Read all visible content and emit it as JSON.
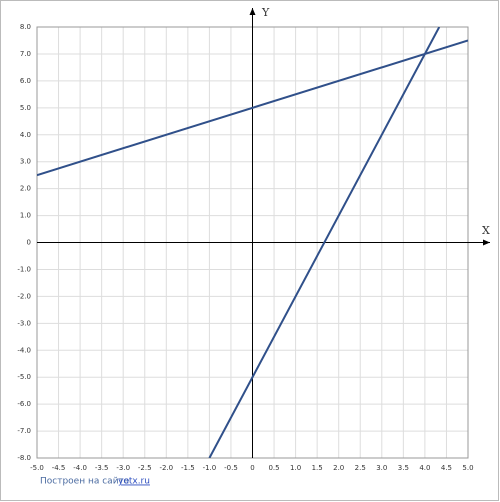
{
  "chart_data": {
    "type": "line",
    "xlabel": "X",
    "ylabel": "Y",
    "series": [
      {
        "name": null,
        "color": "#30508a",
        "x": [
          -5,
          5
        ],
        "values": [
          2.5,
          7.5
        ]
      },
      {
        "name": null,
        "color": "#30508a",
        "x": [
          -1,
          4.333
        ],
        "values": [
          -8,
          8
        ]
      }
    ],
    "xlim": [
      -5,
      5
    ],
    "ylim": [
      -8,
      8
    ],
    "xticks": [
      {
        "value": -5,
        "label": "-5.0"
      },
      {
        "value": -4.5,
        "label": "-4.5"
      },
      {
        "value": -4,
        "label": "-4.0"
      },
      {
        "value": -3.5,
        "label": "-3.5"
      },
      {
        "value": -3,
        "label": "-3.0"
      },
      {
        "value": -2.5,
        "label": "-2.5"
      },
      {
        "value": -2,
        "label": "-2.0"
      },
      {
        "value": -1.5,
        "label": "-1.5"
      },
      {
        "value": -1,
        "label": "-1.0"
      },
      {
        "value": -0.5,
        "label": "-0.5"
      },
      0,
      0.5,
      {
        "value": 1,
        "label": "1.0"
      },
      1.5,
      {
        "value": 2,
        "label": "2.0"
      },
      2.5,
      {
        "value": 3,
        "label": "3.0"
      },
      3.5,
      {
        "value": 4,
        "label": "4.0"
      },
      4.5,
      {
        "value": 5,
        "label": "5.0"
      }
    ],
    "yticks": [
      {
        "value": 8,
        "label": "8.0"
      },
      {
        "value": 7,
        "label": "7.0"
      },
      {
        "value": 6,
        "label": "6.0"
      },
      {
        "value": 5,
        "label": "5.0"
      },
      {
        "value": 4,
        "label": "4.0"
      },
      {
        "value": 3,
        "label": "3.0"
      },
      {
        "value": 2,
        "label": "2.0"
      },
      {
        "value": 1,
        "label": "1.0"
      },
      0,
      {
        "value": -1,
        "label": "-1.0"
      },
      {
        "value": -2,
        "label": "-2.0"
      },
      {
        "value": -3,
        "label": "-3.0"
      },
      {
        "value": -4,
        "label": "-4.0"
      },
      {
        "value": -5,
        "label": "-5.0"
      },
      {
        "value": -6,
        "label": "-6.0"
      },
      {
        "value": -7,
        "label": "-7.0"
      },
      {
        "value": -8,
        "label": "-8.0"
      }
    ],
    "grid": true
  },
  "footer": {
    "text": "Построен на сайте",
    "link": "yotx.ru"
  }
}
